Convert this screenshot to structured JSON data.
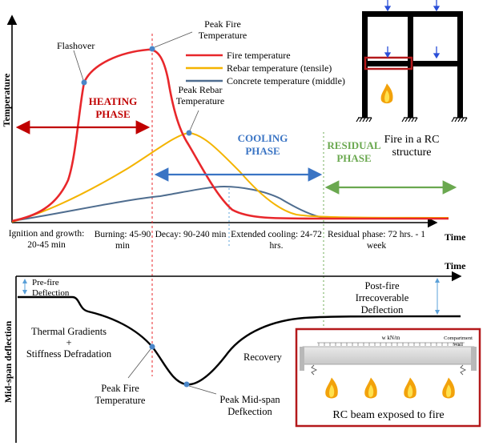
{
  "top_panel": {
    "y_axis_label": "Temperature",
    "x_axis_label": "Time",
    "legend": [
      {
        "name": "Fire temperature",
        "color": "#e8272b"
      },
      {
        "name": "Rebar temperature (tensile)",
        "color": "#f4b400"
      },
      {
        "name": "Concrete temperature (middle)",
        "color": "#4f6d8f"
      }
    ],
    "annotations": {
      "flashover": "Flashover",
      "peak_fire_1": "Peak Fire",
      "peak_fire_2": "Temperature",
      "peak_rebar_1": "Peak Rebar",
      "peak_rebar_2": "Temperature",
      "heating_1": "HEATING",
      "heating_2": "PHASE",
      "cooling_1": "COOLING",
      "cooling_2": "PHASE",
      "residual_1": "RESIDUAL",
      "residual_2": "PHASE"
    },
    "phase_labels": {
      "ignition_1": "Ignition and growth:",
      "ignition_2": "20-45 min",
      "burning_1": "Burning: 45-90",
      "burning_2": "min",
      "decay": "Decay: 90-240 min",
      "extended_1": "Extended cooling: 24-72",
      "extended_2": "hrs.",
      "residual_1": "Residual phase: 72 hrs. - 1",
      "residual_2": "week"
    },
    "inset": {
      "caption_1": "Fire in a RC",
      "caption_2": "structure"
    }
  },
  "bottom_panel": {
    "y_axis_label": "Mid-span deflection",
    "x_axis_label": "Time",
    "annotations": {
      "prefire_1": "Pre-fire",
      "prefire_2": "Deflection",
      "postfire_1": "Post-fire",
      "postfire_2": "Irrecoverable",
      "postfire_3": "Deflection",
      "thermal_1": "Thermal Gradients",
      "thermal_2": "+",
      "thermal_3": "Stiffness Defradation",
      "recovery": "Recovery",
      "peak_fire_1": "Peak Fire",
      "peak_fire_2": "Temperature",
      "peak_mid_1": "Peak Mid-span",
      "peak_mid_2": "Defkection"
    },
    "inset": {
      "load_label": "w kN/m",
      "wall_label_1": "Compartment",
      "wall_label_2": "Wall",
      "caption": "RC beam exposed to fire"
    }
  },
  "colors": {
    "fire": "#e8272b",
    "rebar": "#f4b400",
    "concrete": "#4f6d8f",
    "heating": "#c00000",
    "cooling": "#3a74c4",
    "residual": "#6aa84f",
    "marker": "#4a86c8",
    "frame_red": "#b4191b"
  }
}
